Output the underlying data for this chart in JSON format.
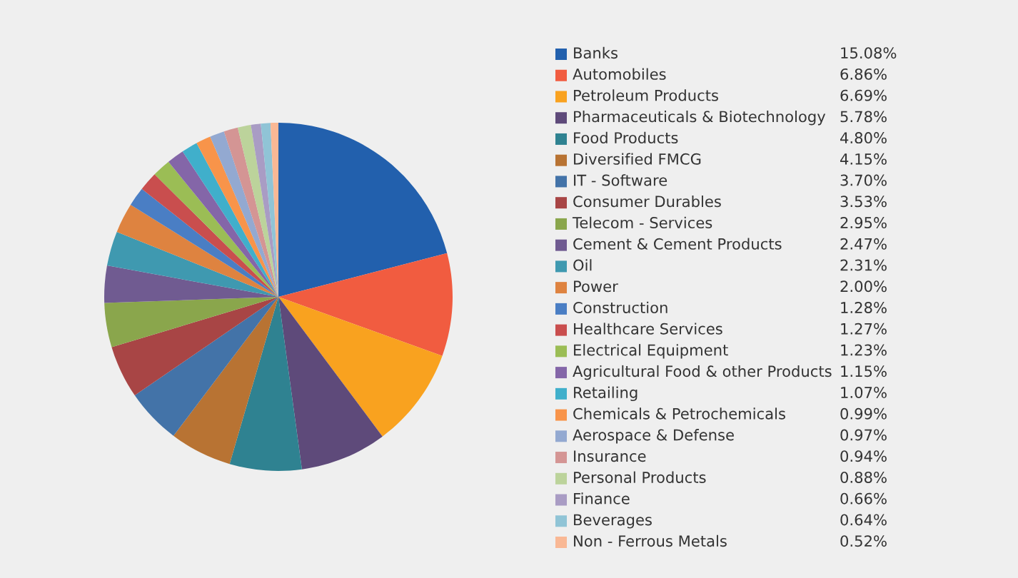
{
  "chart_data": {
    "type": "pie",
    "categories": [
      "Banks",
      "Automobiles",
      "Petroleum Products",
      "Pharmaceuticals & Biotechnology",
      "Food Products",
      "Diversified FMCG",
      "IT - Software",
      "Consumer Durables",
      "Telecom - Services",
      "Cement & Cement Products",
      "Oil",
      "Power",
      "Construction",
      "Healthcare Services",
      "Electrical Equipment",
      "Agricultural Food & other Products",
      "Retailing",
      "Chemicals & Petrochemicals",
      "Aerospace & Defense",
      "Insurance",
      "Personal Products",
      "Finance",
      "Beverages",
      "Non - Ferrous Metals"
    ],
    "values": [
      15.08,
      6.86,
      6.69,
      5.78,
      4.8,
      4.15,
      3.7,
      3.53,
      2.95,
      2.47,
      2.31,
      2.0,
      1.28,
      1.27,
      1.23,
      1.15,
      1.07,
      0.99,
      0.97,
      0.94,
      0.88,
      0.66,
      0.64,
      0.52
    ],
    "value_labels": [
      "15.08%",
      "6.86%",
      "6.69%",
      "5.78%",
      "4.80%",
      "4.15%",
      "3.70%",
      "3.53%",
      "2.95%",
      "2.47%",
      "2.31%",
      "2.00%",
      "1.28%",
      "1.27%",
      "1.23%",
      "1.15%",
      "1.07%",
      "0.99%",
      "0.97%",
      "0.94%",
      "0.88%",
      "0.66%",
      "0.64%",
      "0.52%"
    ],
    "colors": [
      "#2260ad",
      "#f15c40",
      "#f9a21f",
      "#5e4a7a",
      "#2f8291",
      "#b87333",
      "#4373a8",
      "#a84545",
      "#8aa64c",
      "#705b91",
      "#3f99b0",
      "#de8340",
      "#4a7ec4",
      "#c94e4e",
      "#9bbd55",
      "#8466a8",
      "#40afcb",
      "#f8944a",
      "#93a9d1",
      "#d49594",
      "#bcd39b",
      "#a99cc4",
      "#90c4d6",
      "#f9b895"
    ],
    "legend": "right"
  }
}
